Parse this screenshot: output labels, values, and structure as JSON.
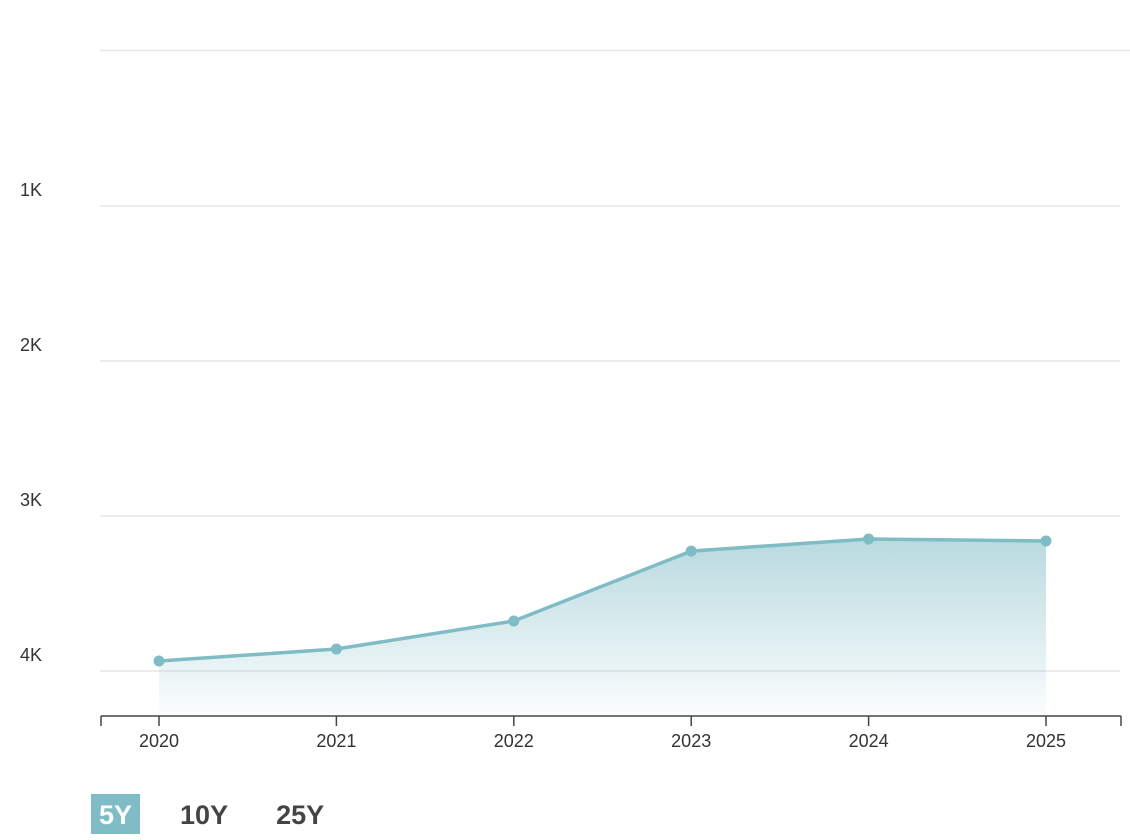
{
  "chart_data": {
    "type": "area",
    "categories": [
      "2020",
      "2021",
      "2022",
      "2023",
      "2024",
      "2025"
    ],
    "values": [
      3935,
      3858,
      3677,
      3226,
      3148,
      3161
    ],
    "color": "#7fbcc5",
    "ylim": [
      4290,
      0
    ],
    "yticks": [
      {
        "value": 1000,
        "label": "1K"
      },
      {
        "value": 2000,
        "label": "2K"
      },
      {
        "value": 3000,
        "label": "3K"
      },
      {
        "value": 4000,
        "label": "4K"
      }
    ],
    "grid": true,
    "markers": true,
    "range_buttons": [
      "5Y",
      "10Y",
      "25Y"
    ],
    "selected_range": "5Y"
  }
}
